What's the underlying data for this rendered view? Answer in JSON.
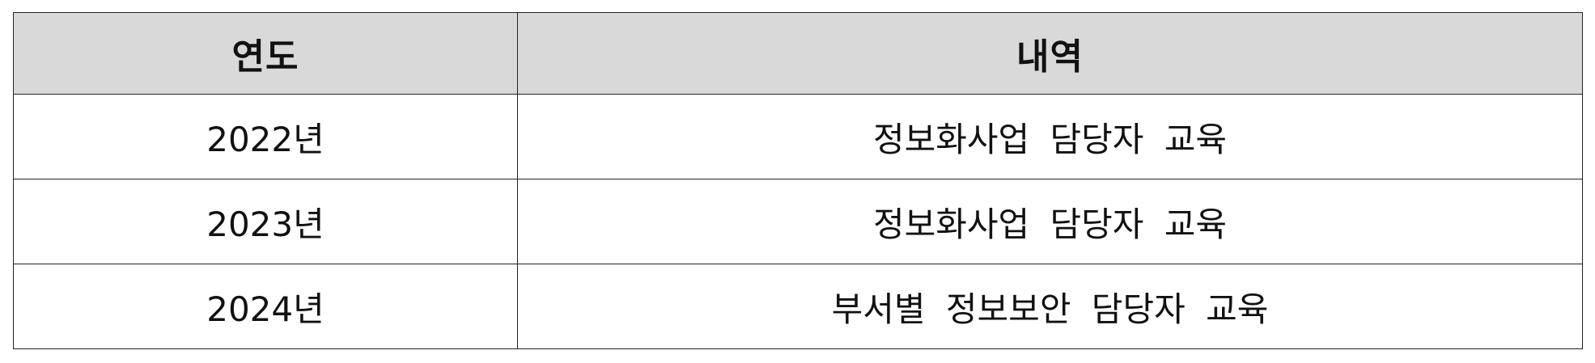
{
  "table": {
    "headers": [
      "연도",
      "내역"
    ],
    "rows": [
      [
        "2022년",
        "정보화사업 담당자 교육"
      ],
      [
        "2023년",
        "정보화사업 담당자 교육"
      ],
      [
        "2024년",
        "부서별 정보보안 담당자 교육"
      ]
    ]
  }
}
